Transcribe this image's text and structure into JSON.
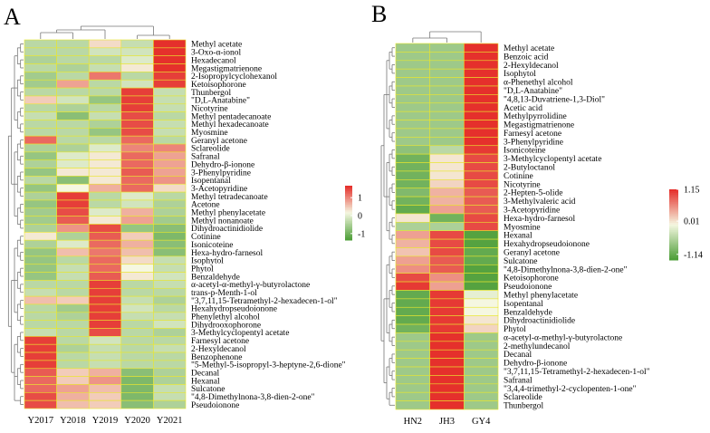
{
  "colors": {
    "low": "#4f9f3a",
    "mid": "#f5f7e1",
    "high": "#e5302c",
    "grid": "#e9e62f",
    "dendro": "#777777"
  },
  "chart_data": [
    {
      "type": "heatmap",
      "panel": "A",
      "columns": [
        "Y2017",
        "Y2018",
        "Y2019",
        "Y2020",
        "Y2021"
      ],
      "rows": [
        "Methyl acetate",
        "3-Oxo-α-ionol",
        "Hexadecanol",
        "Megastigmatrienone",
        "2-Isopropylcyclohexanol",
        "Ketoisophorone",
        "Thunbergol",
        "\"D,L-Anatabine\"",
        "Nicotyrine",
        "Methyl pentadecanoate",
        "Methyl hexadecanoate",
        "Myosmine",
        "Geranyl acetone",
        "Sclareolide",
        "Safranal",
        "Dehydro-β-ionone",
        "3-Phenylpyridine",
        "Isopentanal",
        "3-Acetopyridine",
        "Methyl tetradecanoate",
        "Acetone",
        "Methyl phenylacetate",
        "Methyl nonanoate",
        "Dihydroactinidiolide",
        "Cotinine",
        "Isonicoteine",
        "Hexa-hydro-farnesol",
        "Isophytol",
        "Phytol",
        "Benzaldehyde",
        "α-acetyl-α-methyl-γ-butyrolactone",
        "trans-p-Menth-1-ol",
        "\"3,7,11,15-Tetramethyl-2-hexadecen-1-ol\"",
        "Hexahydropseudoionone",
        "Phenylethyl alcohol",
        "Dihydrooxophorone",
        "3-Methylcyclopentyl acetate",
        "Farnesyl acetone",
        "2-Hexyldecanol",
        "Benzophenone",
        "\"5-Methyl-5-isopropyl-3-heptyne-2,6-dione\"",
        "Decanal",
        "Hexanal",
        "Sulcatone",
        "\"4,8-Dimethylnona-3,8-dien-2-one\"",
        "Pseudoionone"
      ],
      "values": [
        [
          -0.5,
          -0.5,
          0.2,
          -0.4,
          1.4
        ],
        [
          -0.5,
          -0.5,
          -0.3,
          -0.3,
          1.4
        ],
        [
          -0.6,
          -0.5,
          -0.5,
          -0.2,
          1.4
        ],
        [
          -0.5,
          -0.6,
          -0.4,
          0.1,
          1.4
        ],
        [
          -0.7,
          -0.5,
          0.9,
          -0.5,
          1.3
        ],
        [
          -0.7,
          0.6,
          -0.5,
          -0.3,
          1.3
        ],
        [
          -0.5,
          -0.5,
          -0.5,
          1.3,
          -0.4
        ],
        [
          0.3,
          -0.3,
          -0.8,
          1.3,
          -0.4
        ],
        [
          -0.5,
          -0.6,
          -0.5,
          1.3,
          -0.4
        ],
        [
          -0.4,
          -0.9,
          -0.4,
          1.2,
          -0.5
        ],
        [
          -0.5,
          -0.5,
          -0.6,
          1.2,
          -0.4
        ],
        [
          -0.5,
          -0.5,
          -0.8,
          1.2,
          -0.4
        ],
        [
          1.0,
          -0.5,
          -0.5,
          1.0,
          -0.5
        ],
        [
          -0.6,
          -0.6,
          -0.2,
          0.8,
          0.8
        ],
        [
          -0.8,
          -0.2,
          0.1,
          1.0,
          0.6
        ],
        [
          -0.6,
          -0.2,
          0.1,
          1.0,
          0.6
        ],
        [
          -0.8,
          0.1,
          0.1,
          1.1,
          0.6
        ],
        [
          -0.5,
          -0.9,
          0.1,
          1.0,
          0.7
        ],
        [
          -0.8,
          0.0,
          0.5,
          1.0,
          0.2
        ],
        [
          -0.6,
          1.3,
          -0.5,
          -0.2,
          -0.5
        ],
        [
          -0.8,
          1.3,
          -0.5,
          -0.3,
          -0.6
        ],
        [
          -0.7,
          1.2,
          -0.2,
          0.5,
          -0.6
        ],
        [
          -0.7,
          1.1,
          0.1,
          0.6,
          -0.7
        ],
        [
          -0.6,
          0.7,
          1.2,
          -0.8,
          -0.9
        ],
        [
          0.1,
          -0.6,
          1.1,
          0.3,
          -1.0
        ],
        [
          -0.6,
          -0.2,
          1.0,
          0.5,
          -0.9
        ],
        [
          -0.8,
          0.4,
          0.9,
          0.4,
          -0.9
        ],
        [
          -0.8,
          -0.5,
          1.0,
          0.2,
          -0.4
        ],
        [
          -0.8,
          -0.4,
          1.0,
          0.0,
          -0.4
        ],
        [
          -0.8,
          -0.4,
          1.1,
          0.1,
          -0.3
        ],
        [
          -0.5,
          -0.5,
          1.3,
          -0.5,
          -0.4
        ],
        [
          -0.4,
          -0.5,
          1.3,
          -0.5,
          -0.5
        ],
        [
          0.4,
          0.3,
          1.3,
          -0.4,
          -0.6
        ],
        [
          -0.5,
          -0.7,
          1.3,
          -0.3,
          -0.5
        ],
        [
          -0.5,
          -0.6,
          1.3,
          -0.4,
          -0.4
        ],
        [
          -0.5,
          -0.5,
          1.3,
          -0.5,
          -0.3
        ],
        [
          -0.4,
          -0.5,
          1.2,
          -0.5,
          -0.6
        ],
        [
          1.3,
          -0.5,
          -0.3,
          -0.5,
          -0.5
        ],
        [
          1.3,
          -0.6,
          -0.4,
          -0.5,
          -0.4
        ],
        [
          1.3,
          -0.5,
          -0.4,
          -0.5,
          -0.5
        ],
        [
          1.3,
          -0.5,
          -0.4,
          -0.5,
          -0.5
        ],
        [
          1.1,
          0.3,
          0.5,
          -0.9,
          -0.6
        ],
        [
          1.0,
          0.3,
          0.7,
          -1.0,
          -0.6
        ],
        [
          1.0,
          0.6,
          0.4,
          -1.0,
          -0.4
        ],
        [
          1.2,
          0.5,
          0.3,
          -1.0,
          -0.4
        ],
        [
          1.2,
          0.4,
          0.3,
          -0.9,
          -0.6
        ]
      ],
      "legend": {
        "ticks": [
          "1",
          "0",
          "-1"
        ],
        "min": -1.4,
        "max": 1.4
      }
    },
    {
      "type": "heatmap",
      "panel": "B",
      "columns": [
        "HN2",
        "JH3",
        "GY4"
      ],
      "rows": [
        "Methyl acetate",
        "Benzoic acid",
        "2-Hexyldecanol",
        "Isophytol",
        "α-Phenethyl alcohol",
        "\"D,L-Anatabine\"",
        "\"4,8,13-Duvatriene-1,3-Diol\"",
        "Acetic acid",
        "Methylpyrrolidine",
        "Megastigmatrienone",
        "Farnesyl acetone",
        "3-Phenylpyridine",
        "Isonicoteine",
        "3-Methylcyclopentyl acetate",
        "2-Butyloctanol",
        "Cotinine",
        "Nicotyrine",
        "2-Hepten-5-olide",
        "3-Methylvaleric acid",
        "3-Acetopyridine",
        "Hexa-hydro-farnesol",
        "Myosmine",
        "Hexanal",
        "Hexahydropseudoionone",
        "Geranyl acetone",
        "Sulcatone",
        "\"4,8-Dimethylnona-3,8-dien-2-one\"",
        "Ketoisophorone",
        "Pseudoionone",
        "Methyl phenylacetate",
        "Isopentanal",
        "Benzaldehyde",
        "Dihydroactinidiolide",
        "Phytol",
        "α-acetyl-α-methyl-γ-butyrolactone",
        "2-methylundecanol",
        "Decanal",
        "Dehydro-β-ionone",
        "\"3,7,11,15-Tetramethyl-2-hexadecen-1-ol\"",
        "Safranal",
        "\"3,4,4-trimethyl-2-cyclopenten-1-one\"",
        "Sclareolide",
        "Thunbergol"
      ],
      "values": [
        [
          -0.6,
          -0.6,
          1.15
        ],
        [
          -0.6,
          -0.6,
          1.15
        ],
        [
          -0.6,
          -0.6,
          1.15
        ],
        [
          -0.6,
          -0.6,
          1.15
        ],
        [
          -0.6,
          -0.6,
          1.15
        ],
        [
          -0.6,
          -0.6,
          1.15
        ],
        [
          -0.6,
          -0.6,
          1.15
        ],
        [
          -0.6,
          -0.6,
          1.15
        ],
        [
          -0.6,
          -0.6,
          1.15
        ],
        [
          -0.6,
          -0.6,
          1.15
        ],
        [
          -0.6,
          -0.6,
          1.15
        ],
        [
          -0.6,
          -0.6,
          1.15
        ],
        [
          -0.7,
          -0.4,
          1.1
        ],
        [
          -0.9,
          0.1,
          1.0
        ],
        [
          -0.9,
          0.1,
          1.0
        ],
        [
          -0.9,
          0.1,
          1.0
        ],
        [
          -0.9,
          0.2,
          1.0
        ],
        [
          -0.8,
          0.4,
          0.9
        ],
        [
          -0.9,
          0.4,
          0.9
        ],
        [
          -1.0,
          0.5,
          0.9
        ],
        [
          0.1,
          -0.9,
          1.0
        ],
        [
          -0.5,
          -0.5,
          1.0
        ],
        [
          0.5,
          1.0,
          -1.1
        ],
        [
          0.4,
          1.0,
          -1.1
        ],
        [
          0.3,
          1.0,
          -1.0
        ],
        [
          0.5,
          0.9,
          -1.0
        ],
        [
          0.6,
          0.9,
          -1.1
        ],
        [
          1.0,
          0.6,
          -1.1
        ],
        [
          1.1,
          0.5,
          -1.1
        ],
        [
          -1.0,
          1.1,
          -0.1
        ],
        [
          -1.0,
          1.1,
          0.0
        ],
        [
          -1.0,
          1.1,
          0.0
        ],
        [
          -1.0,
          1.1,
          0.1
        ],
        [
          -0.9,
          1.1,
          0.2
        ],
        [
          -0.6,
          1.15,
          -0.6
        ],
        [
          -0.6,
          1.15,
          -0.6
        ],
        [
          -0.6,
          1.15,
          -0.6
        ],
        [
          -0.6,
          1.15,
          -0.6
        ],
        [
          -0.6,
          1.15,
          -0.6
        ],
        [
          -0.6,
          1.15,
          -0.6
        ],
        [
          -0.6,
          1.15,
          -0.6
        ],
        [
          -0.6,
          1.15,
          -0.6
        ],
        [
          -0.6,
          1.15,
          -0.6
        ]
      ],
      "legend": {
        "ticks": [
          "1.15",
          "0.01",
          "-1.14"
        ],
        "min": -1.14,
        "max": 1.15
      }
    }
  ]
}
